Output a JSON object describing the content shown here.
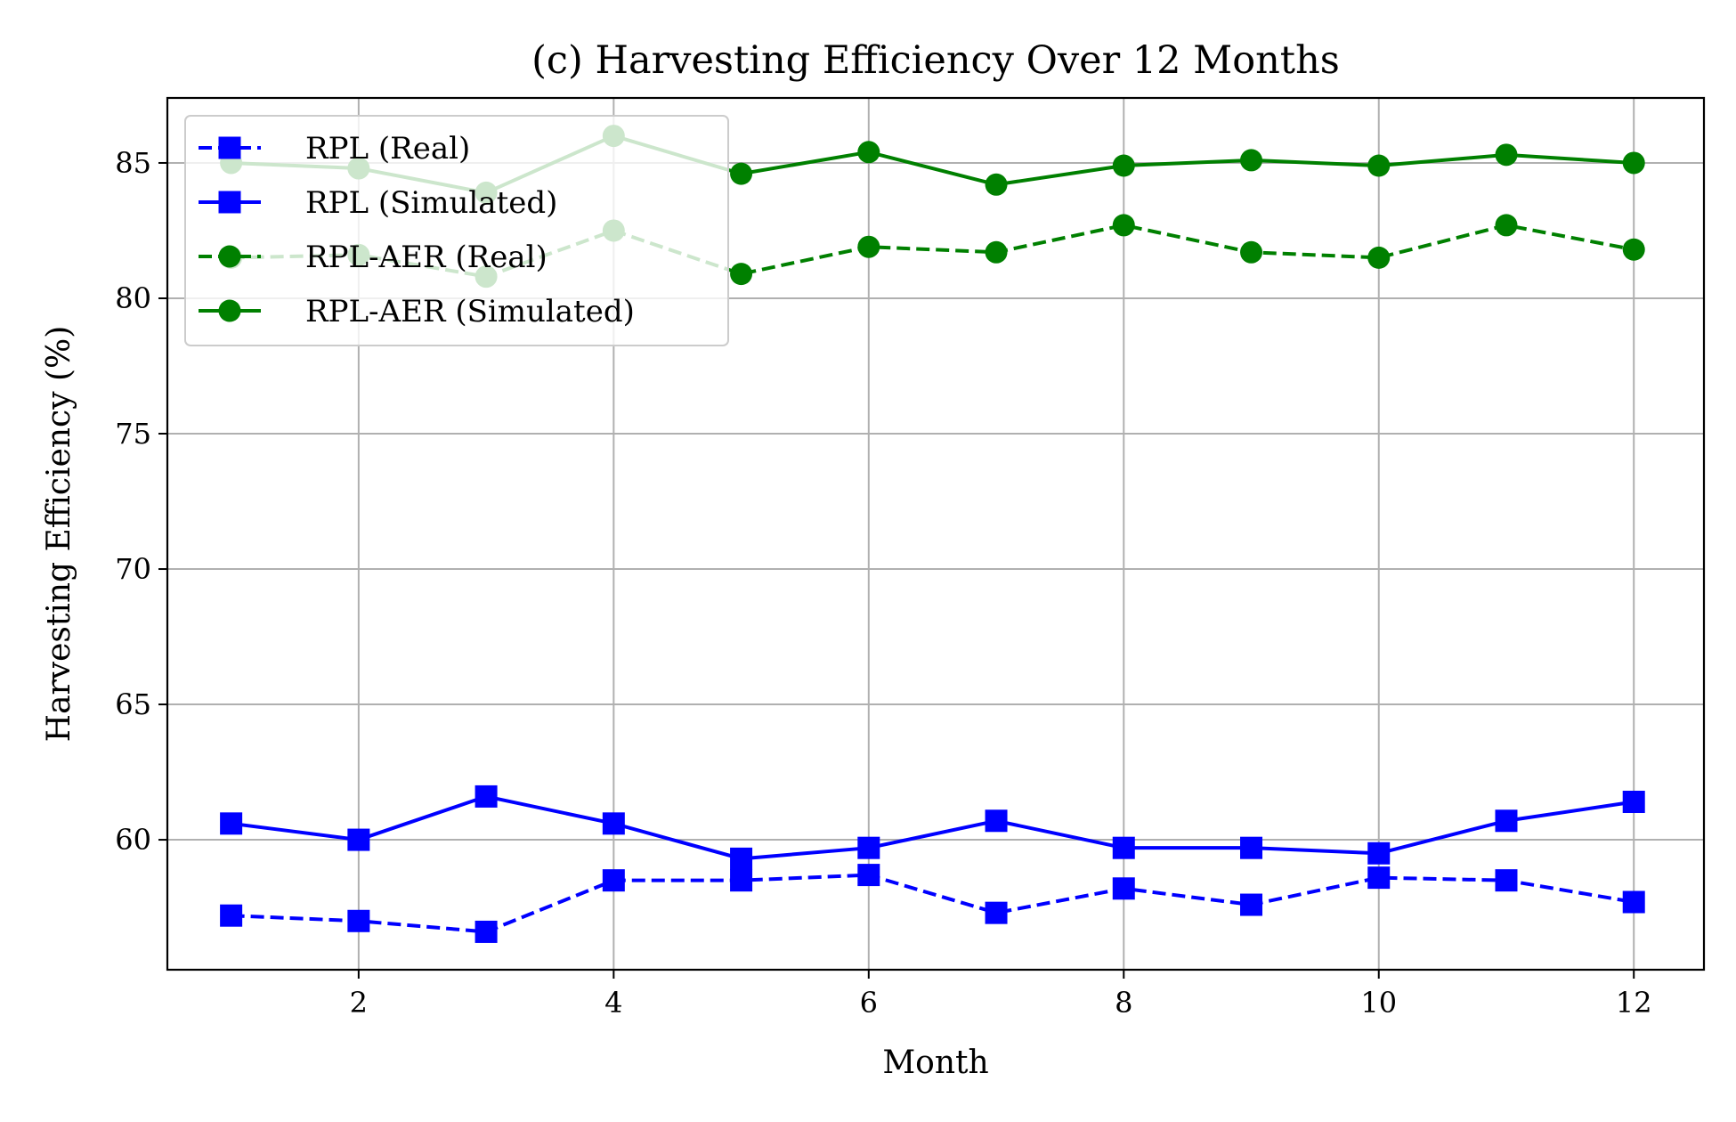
{
  "chart_data": {
    "type": "line",
    "title": "(c) Harvesting Efficiency Over 12 Months",
    "xlabel": "Month",
    "ylabel": "Harvesting Efficiency (%)",
    "xlim": [
      0.5,
      12.55
    ],
    "ylim": [
      55.2,
      87.4
    ],
    "xticks": [
      2,
      4,
      6,
      8,
      10,
      12
    ],
    "yticks": [
      60,
      65,
      70,
      75,
      80,
      85
    ],
    "grid": true,
    "legend_position": "upper-left",
    "x": [
      1,
      2,
      3,
      4,
      5,
      6,
      7,
      8,
      9,
      10,
      11,
      12
    ],
    "series": [
      {
        "name": "RPL (Real)",
        "color": "#0000ff",
        "linestyle": "dashed",
        "marker": "square",
        "values": [
          57.2,
          57.0,
          56.6,
          58.5,
          58.5,
          58.7,
          57.3,
          58.2,
          57.6,
          58.6,
          58.5,
          57.7
        ]
      },
      {
        "name": "RPL (Simulated)",
        "color": "#0000ff",
        "linestyle": "solid",
        "marker": "square",
        "values": [
          60.6,
          60.0,
          61.6,
          60.6,
          59.3,
          59.7,
          60.7,
          59.7,
          59.7,
          59.5,
          60.7,
          61.4
        ]
      },
      {
        "name": "RPL-AER (Real)",
        "color": "#008000",
        "linestyle": "dashed",
        "marker": "circle",
        "values": [
          81.5,
          81.6,
          80.8,
          82.5,
          80.9,
          81.9,
          81.7,
          82.7,
          81.7,
          81.5,
          82.7,
          81.8
        ]
      },
      {
        "name": "RPL-AER (Simulated)",
        "color": "#008000",
        "linestyle": "solid",
        "marker": "circle",
        "values": [
          85.0,
          84.8,
          83.9,
          86.0,
          84.6,
          85.4,
          84.2,
          84.9,
          85.1,
          84.9,
          85.3,
          85.0
        ]
      }
    ]
  }
}
